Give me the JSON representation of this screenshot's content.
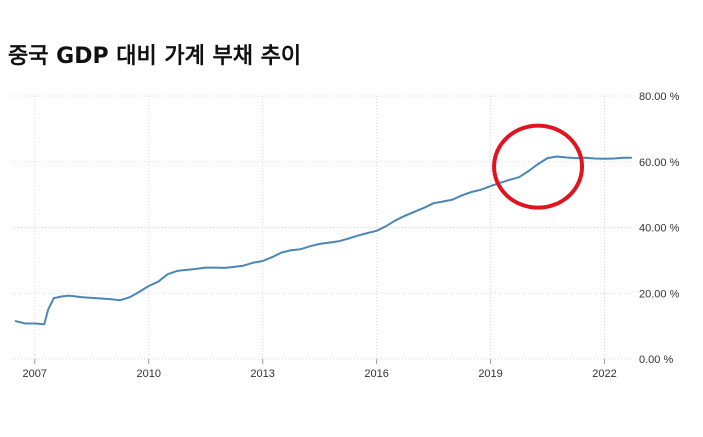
{
  "chart_data": {
    "type": "line",
    "title": "중국 GDP 대비 가계 부채 추이",
    "xlabel": "",
    "ylabel": "",
    "x_ticks": [
      "2007",
      "2010",
      "2013",
      "2016",
      "2019",
      "2022"
    ],
    "y_ticks": [
      "0.00 %",
      "20.00 %",
      "40.00 %",
      "60.00 %",
      "80.00 %"
    ],
    "ylim": [
      0,
      80
    ],
    "xlim": [
      2006.4,
      2022.75
    ],
    "grid": true,
    "axis_position": "right",
    "colors": {
      "line": "#4a86b8",
      "highlight": "#e0141e",
      "grid": "#d9d9d9"
    },
    "annotation": {
      "type": "circle",
      "center": [
        2020.25,
        58.5
      ],
      "note": "highlight"
    },
    "series": [
      {
        "name": "",
        "x": [
          2006.5,
          2006.75,
          2007.0,
          2007.25,
          2007.35,
          2007.5,
          2007.7,
          2007.9,
          2008.25,
          2008.5,
          2008.75,
          2009.0,
          2009.25,
          2009.5,
          2009.75,
          2010.0,
          2010.25,
          2010.5,
          2010.75,
          2011.0,
          2011.25,
          2011.5,
          2011.75,
          2012.0,
          2012.25,
          2012.5,
          2012.75,
          2013.0,
          2013.25,
          2013.5,
          2013.75,
          2014.0,
          2014.25,
          2014.5,
          2014.75,
          2015.0,
          2015.25,
          2015.5,
          2015.75,
          2016.0,
          2016.25,
          2016.5,
          2016.75,
          2017.0,
          2017.25,
          2017.5,
          2017.75,
          2018.0,
          2018.25,
          2018.5,
          2018.75,
          2019.0,
          2019.25,
          2019.5,
          2019.75,
          2020.0,
          2020.25,
          2020.5,
          2020.75,
          2021.0,
          2021.25,
          2021.5,
          2021.75,
          2022.0,
          2022.25,
          2022.5,
          2022.7
        ],
        "values": [
          11.5,
          10.8,
          10.8,
          10.6,
          15.0,
          18.5,
          19.0,
          19.3,
          18.8,
          18.6,
          18.4,
          18.2,
          17.9,
          18.8,
          20.4,
          22.2,
          23.5,
          25.8,
          26.8,
          27.1,
          27.4,
          27.8,
          27.8,
          27.7,
          28.0,
          28.4,
          29.3,
          29.8,
          31.0,
          32.4,
          33.1,
          33.4,
          34.3,
          35.0,
          35.4,
          35.8,
          36.6,
          37.5,
          38.3,
          39.0,
          40.4,
          42.2,
          43.6,
          44.8,
          46.0,
          47.4,
          47.9,
          48.5,
          49.8,
          50.8,
          51.5,
          52.6,
          53.6,
          54.5,
          55.3,
          57.2,
          59.3,
          61.1,
          61.6,
          61.3,
          61.1,
          61.2,
          61.0,
          60.9,
          61.0,
          61.2,
          61.2
        ]
      }
    ]
  }
}
